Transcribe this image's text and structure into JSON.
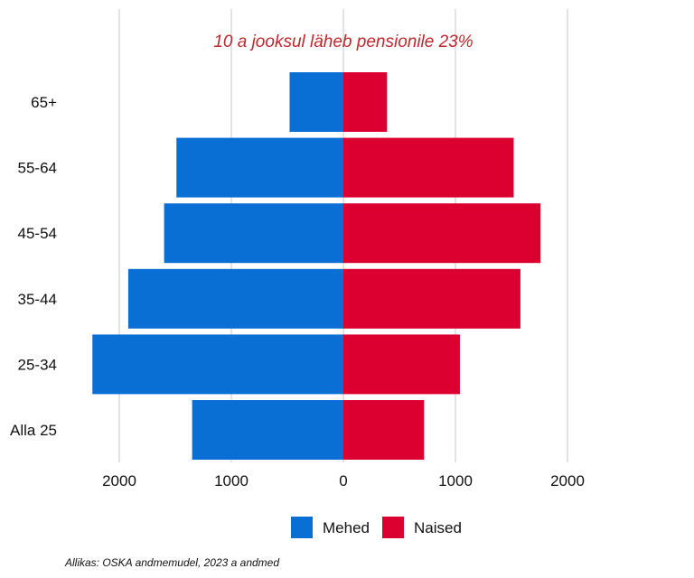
{
  "chart_data": {
    "type": "bar",
    "orientation": "horizontal",
    "subtype": "population-pyramid",
    "categories": [
      "Alla 25",
      "25-34",
      "35-44",
      "45-54",
      "55-64",
      "65+"
    ],
    "series": [
      {
        "name": "Mehed",
        "color": "#0a6fd4",
        "values": [
          1350,
          2240,
          1920,
          1600,
          1490,
          480
        ]
      },
      {
        "name": "Naised",
        "color": "#dc0030",
        "values": [
          720,
          1040,
          1580,
          1760,
          1520,
          390
        ]
      }
    ],
    "xlim": [
      -2000,
      2000
    ],
    "xticks": [
      -2000,
      -1000,
      0,
      1000,
      2000
    ],
    "xtick_labels": [
      "2000",
      "1000",
      "0",
      "1000",
      "2000"
    ],
    "grid": "vertical",
    "legend_position": "bottom",
    "annotation": {
      "text": "10 a jooksul läheb pensionile 23%",
      "color": "#c0272d"
    },
    "source": "Allikas: OSKA andmemudel, 2023 a andmed",
    "title": "",
    "xlabel": "",
    "ylabel": ""
  }
}
